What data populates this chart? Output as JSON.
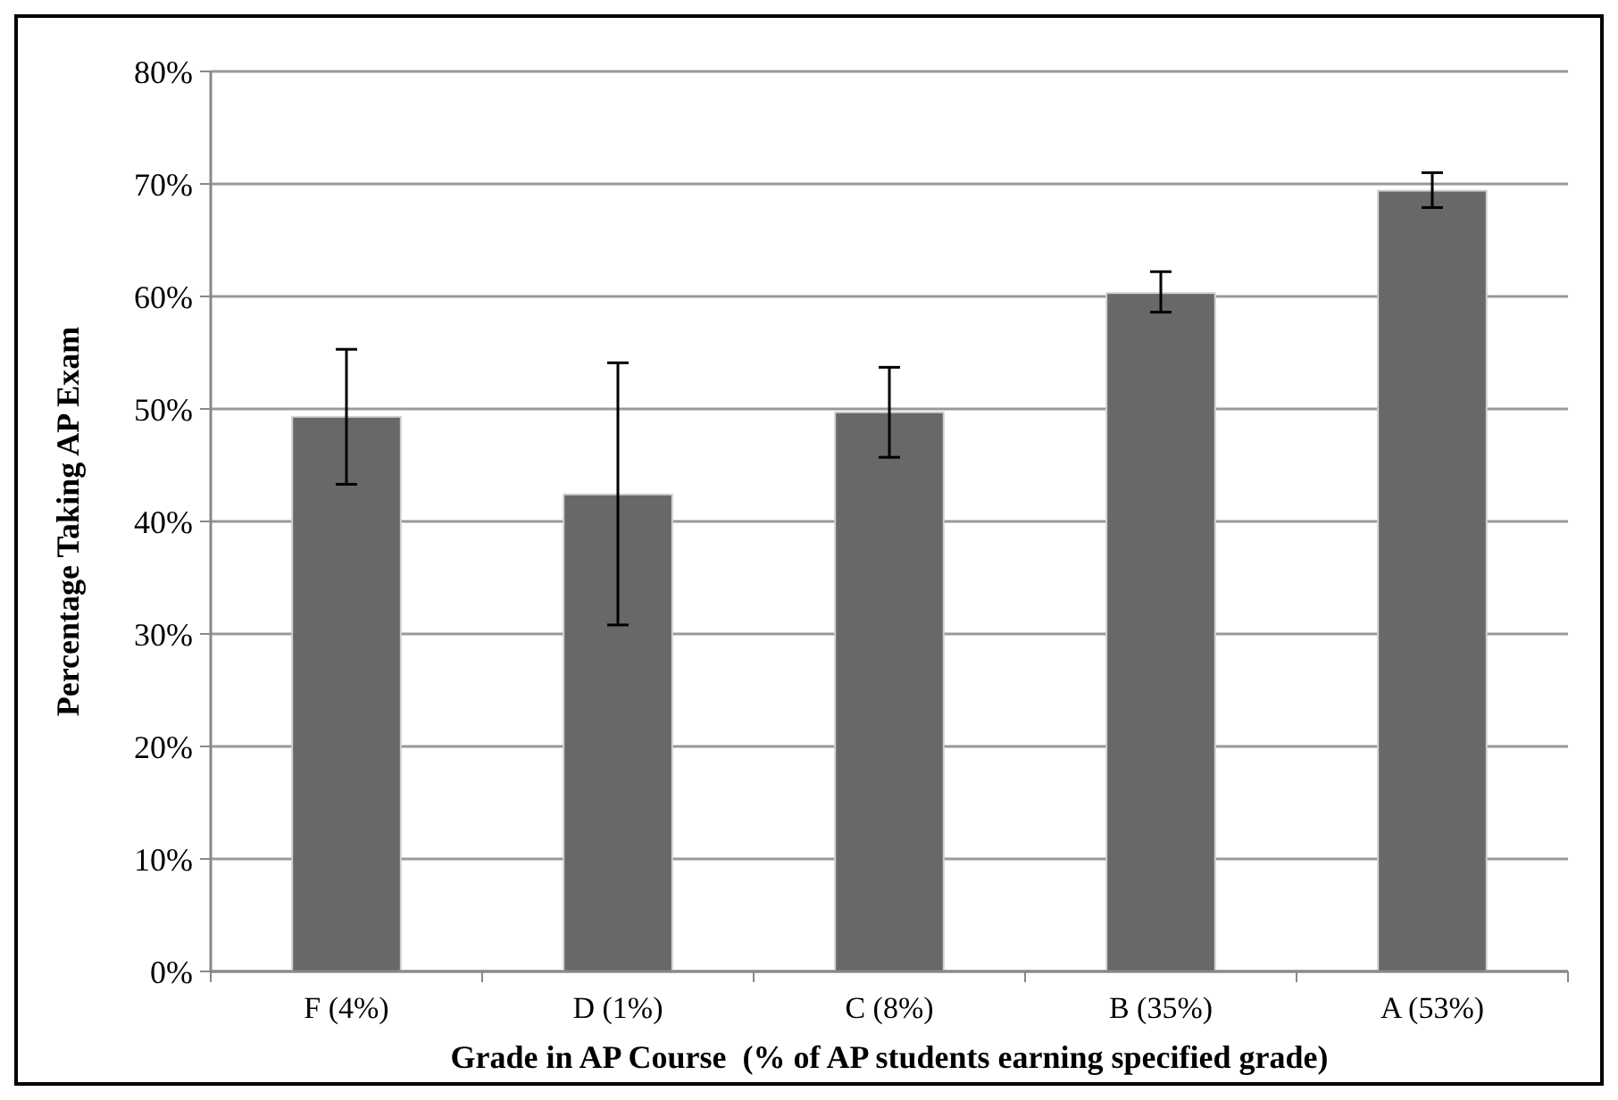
{
  "chart_data": {
    "type": "bar",
    "xlabel": "Grade in AP Course  (% of AP students earning specified grade)",
    "ylabel": "Percentage Taking AP Exam",
    "categories": [
      "F (4%)",
      "D (1%)",
      "C (8%)",
      "B (35%)",
      "A (53%)"
    ],
    "values": [
      49.3,
      42.4,
      49.7,
      60.3,
      69.4
    ],
    "color": "#686868",
    "errors": [
      [
        43.3,
        55.3
      ],
      [
        30.8,
        54.1
      ],
      [
        45.7,
        53.7
      ],
      [
        58.6,
        62.2
      ],
      [
        67.9,
        71.0
      ]
    ],
    "ylim": [
      0,
      80
    ],
    "yticks": [
      {
        "value": 0,
        "label": "0%"
      },
      {
        "value": 10,
        "label": "10%"
      },
      {
        "value": 20,
        "label": "20%"
      },
      {
        "value": 30,
        "label": "30%"
      },
      {
        "value": 40,
        "label": "40%"
      },
      {
        "value": 50,
        "label": "50%"
      },
      {
        "value": 60,
        "label": "60%"
      },
      {
        "value": 70,
        "label": "70%"
      },
      {
        "value": 80,
        "label": "80%"
      }
    ],
    "grid": "y"
  }
}
